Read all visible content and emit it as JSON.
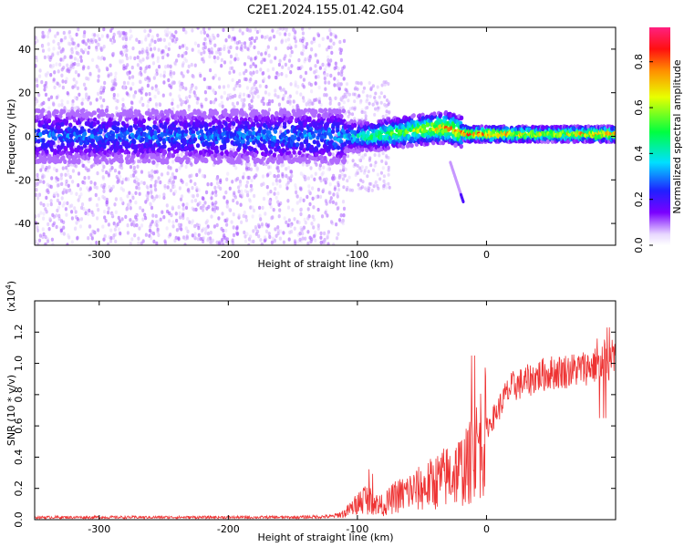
{
  "title": "C2E1.2024.155.01.42.G04",
  "chart_data": [
    {
      "type": "heatmap",
      "title": "C2E1.2024.155.01.42.G04",
      "xlabel": "Height of straight line (km)",
      "ylabel": "Frequency (Hz)",
      "xlim": [
        -350,
        100
      ],
      "ylim": [
        -50,
        50
      ],
      "xticks": [
        -300,
        -200,
        -100,
        0
      ],
      "yticks": [
        -40,
        -20,
        0,
        20,
        40
      ],
      "colorbar": {
        "label": "Normalized spectral amplitude",
        "range": [
          0,
          0.95
        ],
        "ticks": [
          "0.0",
          "0.2",
          "0.4",
          "0.6",
          "0.8"
        ]
      },
      "description_points": [
        {
          "height": -350,
          "center_freq": 0,
          "peak_amp": 0.35
        },
        {
          "height": -200,
          "center_freq": 0,
          "peak_amp": 0.35
        },
        {
          "height": -110,
          "center_freq": 0,
          "peak_amp": 0.4
        },
        {
          "height": -90,
          "center_freq": 0,
          "peak_amp": 0.55
        },
        {
          "height": -50,
          "center_freq": 3,
          "peak_amp": 0.7
        },
        {
          "height": -30,
          "center_freq": 4,
          "peak_amp": 0.85
        },
        {
          "height": -15,
          "center_freq": 1,
          "peak_amp": 0.9
        },
        {
          "height": 0,
          "center_freq": 1,
          "peak_amp": 0.92
        },
        {
          "height": 50,
          "center_freq": 1,
          "peak_amp": 0.75
        },
        {
          "height": 95,
          "center_freq": 1,
          "peak_amp": 0.9
        }
      ]
    },
    {
      "type": "line",
      "xlabel": "Height of straight line (km)",
      "ylabel": "SNR (10 * v/v)",
      "yscale_label": "(x10",
      "yscale_exp": "4",
      "yscale_close": ")",
      "xlim": [
        -350,
        100
      ],
      "ylim": [
        0,
        14000
      ],
      "xticks": [
        -300,
        -200,
        -100,
        0
      ],
      "yticks": [
        "0.0",
        "0.2",
        "0.4",
        "0.6",
        "0.8",
        "1.0",
        "1.2"
      ],
      "color": "#ee3333",
      "series": [
        {
          "name": "SNR",
          "x": [
            -350,
            -300,
            -250,
            -200,
            -150,
            -120,
            -110,
            -100,
            -95,
            -90,
            -85,
            -80,
            -75,
            -70,
            -65,
            -60,
            -55,
            -50,
            -45,
            -40,
            -35,
            -30,
            -25,
            -20,
            -15,
            -10,
            -5,
            0,
            5,
            10,
            15,
            20,
            30,
            40,
            50,
            60,
            70,
            80,
            90,
            100
          ],
          "y": [
            150,
            150,
            150,
            150,
            150,
            200,
            400,
            1000,
            1400,
            1200,
            1000,
            900,
            1200,
            1500,
            1600,
            1800,
            1900,
            2000,
            2200,
            2400,
            2600,
            2800,
            3000,
            3200,
            3400,
            4000,
            5000,
            5800,
            6500,
            7200,
            8000,
            8500,
            8800,
            9200,
            9400,
            9500,
            9600,
            9800,
            10000,
            10200
          ]
        }
      ]
    }
  ]
}
